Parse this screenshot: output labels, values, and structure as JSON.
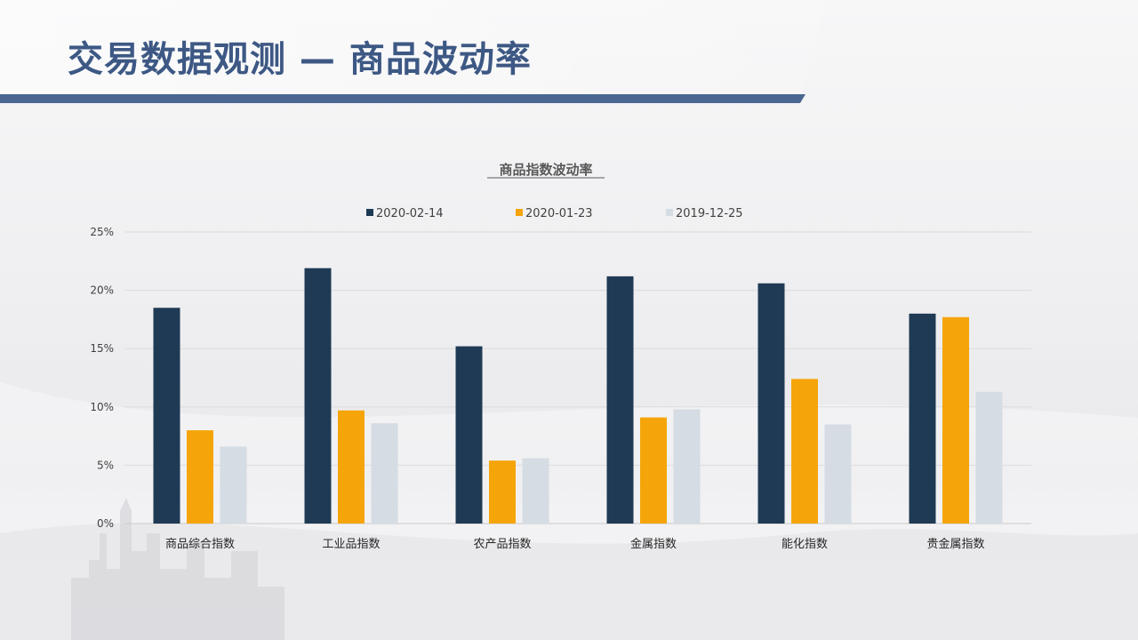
{
  "slide": {
    "title": "交易数据观测 — 商品波动率"
  },
  "colors": {
    "accent": "#3d5884",
    "series_1": "#1f3a54",
    "series_2": "#f5a50a",
    "series_3": "#d5dce3"
  },
  "chart_data": {
    "type": "bar",
    "title": "商品指数波动率",
    "xlabel": "",
    "ylabel": "",
    "categories": [
      "商品综合指数",
      "工业品指数",
      "农产品指数",
      "金属指数",
      "能化指数",
      "贵金属指数"
    ],
    "series": [
      {
        "name": "2020-02-14",
        "values": [
          18.5,
          21.9,
          15.2,
          21.2,
          20.6,
          18.0
        ]
      },
      {
        "name": "2020-01-23",
        "values": [
          8.0,
          9.7,
          5.4,
          9.1,
          12.4,
          17.7
        ]
      },
      {
        "name": "2019-12-25",
        "values": [
          6.6,
          8.6,
          5.6,
          9.8,
          8.5,
          11.3
        ]
      }
    ],
    "ylim": [
      0,
      25
    ],
    "yticks": [
      "0%",
      "5%",
      "10%",
      "15%",
      "20%",
      "25%"
    ],
    "grid": true,
    "legend_position": "top-center"
  }
}
